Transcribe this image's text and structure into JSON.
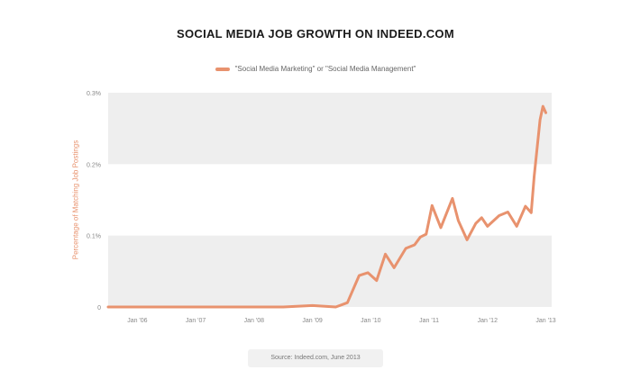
{
  "title": "SOCIAL MEDIA JOB GROWTH ON INDEED.COM",
  "legend": {
    "label": "\"Social Media Marketing\" or \"Social Media Management\"",
    "color": "#e8926e"
  },
  "ylabel": "Percentage of Matching Job Postings",
  "source": "Source: Indeed.com, June 2013",
  "chart_data": {
    "type": "line",
    "title": "SOCIAL MEDIA JOB GROWTH ON INDEED.COM",
    "ylabel": "Percentage of Matching Job Postings",
    "xlabel": "",
    "ylim": [
      0,
      0.3
    ],
    "yticks": [
      0,
      0.1,
      0.2,
      0.3
    ],
    "ytick_labels": [
      "0",
      "0.1%",
      "0.2%",
      "0.3%"
    ],
    "xlim": [
      2006.0,
      2013.6
    ],
    "xticks": [
      2006.5,
      2007.5,
      2008.5,
      2009.5,
      2010.5,
      2011.5,
      2012.5,
      2013.5
    ],
    "xtick_labels": [
      "Jan '06",
      "Jan '07",
      "Jan '08",
      "Jan '09",
      "Jan '10",
      "Jan '11",
      "Jan '12",
      "Jan '13"
    ],
    "grid_bands": true,
    "series": [
      {
        "name": "\"Social Media Marketing\" or \"Social Media Management\"",
        "color": "#e8926e",
        "x": [
          2006.0,
          2006.5,
          2007.0,
          2007.5,
          2008.0,
          2008.5,
          2009.0,
          2009.5,
          2009.9,
          2010.1,
          2010.3,
          2010.45,
          2010.6,
          2010.75,
          2010.9,
          2011.1,
          2011.25,
          2011.35,
          2011.45,
          2011.55,
          2011.7,
          2011.9,
          2012.0,
          2012.15,
          2012.3,
          2012.4,
          2012.5,
          2012.7,
          2012.85,
          2013.0,
          2013.15,
          2013.25,
          2013.3,
          2013.4,
          2013.45,
          2013.5
        ],
        "values": [
          0.0,
          0.0,
          0.0,
          0.0,
          0.0,
          0.0,
          0.0,
          0.002,
          0.0,
          0.006,
          0.044,
          0.048,
          0.037,
          0.074,
          0.055,
          0.082,
          0.087,
          0.098,
          0.102,
          0.142,
          0.111,
          0.152,
          0.121,
          0.094,
          0.117,
          0.125,
          0.113,
          0.128,
          0.133,
          0.113,
          0.141,
          0.132,
          0.183,
          0.262,
          0.281,
          0.272
        ]
      }
    ]
  }
}
